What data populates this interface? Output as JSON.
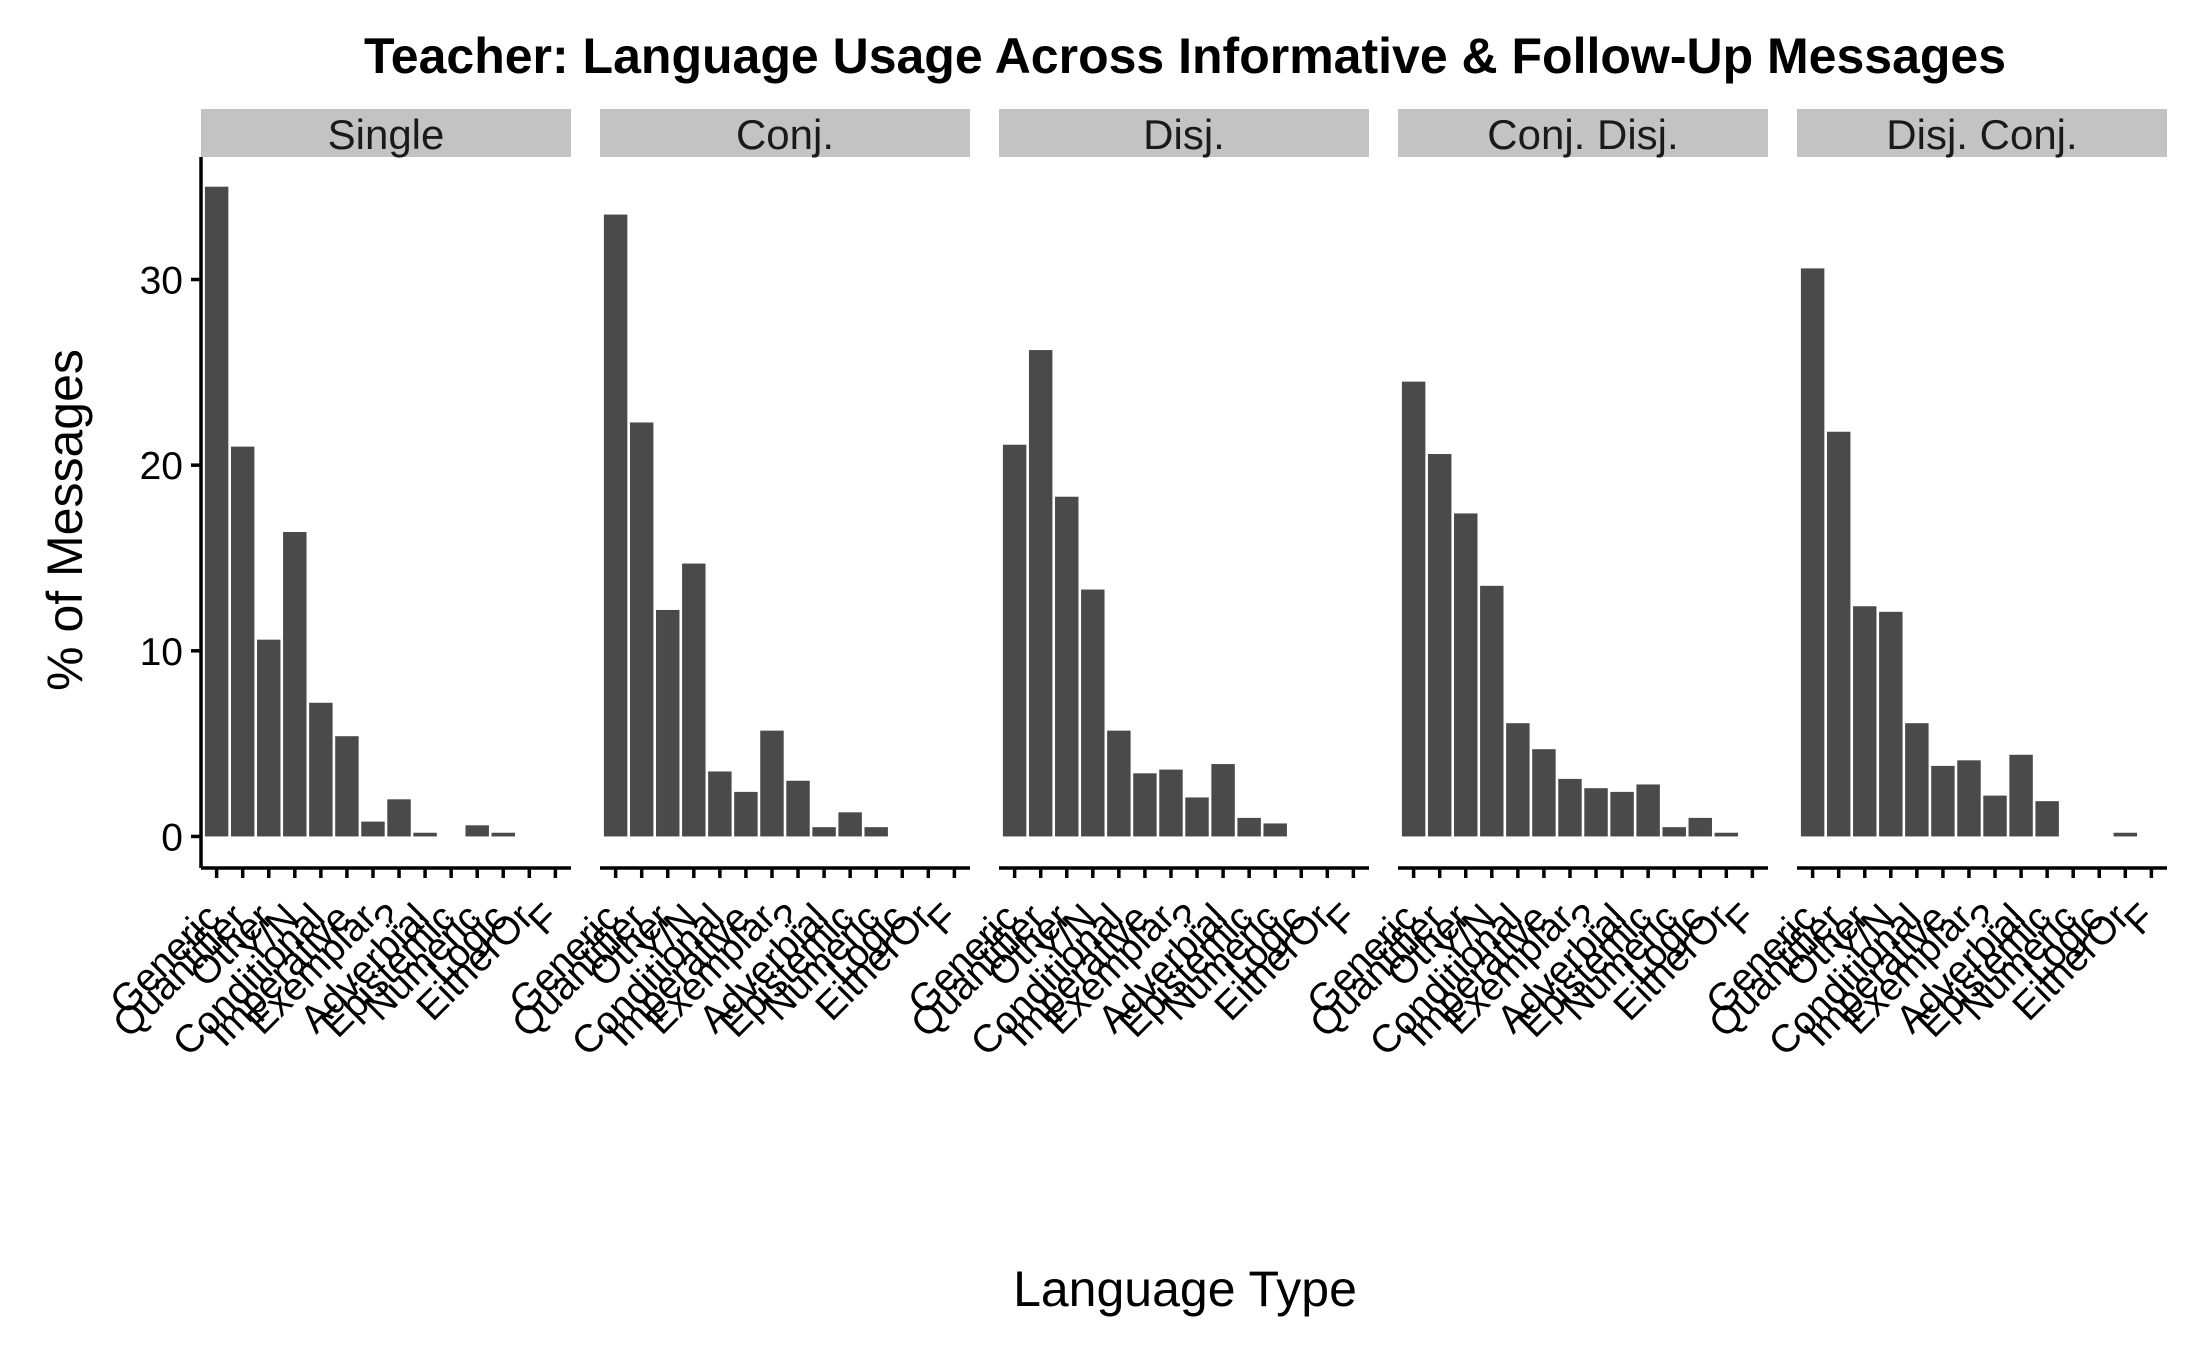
{
  "chart_data": {
    "type": "bar",
    "title": "Teacher: Language Usage Across Informative & Follow-Up Messages",
    "xlabel": "Language Type",
    "ylabel": "% of Messages",
    "ylim": [
      -1.7,
      36.6
    ],
    "yticks": [
      0,
      10,
      20,
      30
    ],
    "grid": false,
    "facets": [
      "Single",
      "Conj.",
      "Disj.",
      "Conj. Disj.",
      "Disj. Conj."
    ],
    "categories": [
      "Generic",
      "Quantifier",
      "Other",
      "Y/N",
      "Conditional",
      "Imperative",
      "Exemplar",
      "?",
      "Adverbial",
      "Epistemic",
      "Numeric",
      "Logic",
      "EitherOr",
      "F"
    ],
    "series": [
      {
        "facet": "Single",
        "values": [
          35.0,
          21.0,
          10.6,
          16.4,
          7.2,
          5.4,
          0.8,
          2.0,
          0.2,
          0,
          0.6,
          0.2,
          0,
          0
        ]
      },
      {
        "facet": "Conj.",
        "values": [
          33.5,
          22.3,
          12.2,
          14.7,
          3.5,
          2.4,
          5.7,
          3.0,
          0.5,
          1.3,
          0.5,
          0,
          0,
          0
        ]
      },
      {
        "facet": "Disj.",
        "values": [
          21.1,
          26.2,
          18.3,
          13.3,
          5.7,
          3.4,
          3.6,
          2.1,
          3.9,
          1.0,
          0.7,
          0,
          0,
          0
        ]
      },
      {
        "facet": "Conj. Disj.",
        "values": [
          24.5,
          20.6,
          17.4,
          13.5,
          6.1,
          4.7,
          3.1,
          2.6,
          2.4,
          2.8,
          0.5,
          1.0,
          0.2,
          0
        ]
      },
      {
        "facet": "Disj. Conj.",
        "values": [
          30.6,
          21.8,
          12.4,
          12.1,
          6.1,
          3.8,
          4.1,
          2.2,
          4.4,
          1.9,
          0,
          0,
          0.2,
          0
        ]
      }
    ]
  }
}
